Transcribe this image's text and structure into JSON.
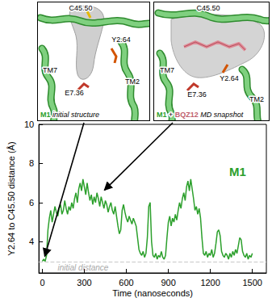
{
  "chart_data": {
    "type": "line",
    "x_label": "Time (nanoseconds)",
    "y_label": "Y2.64 to C45.50 distance (Å)",
    "x": [
      0,
      10,
      20,
      30,
      40,
      50,
      60,
      70,
      80,
      90,
      100,
      110,
      120,
      130,
      140,
      150,
      160,
      170,
      180,
      190,
      200,
      210,
      220,
      230,
      240,
      250,
      260,
      270,
      280,
      290,
      300,
      310,
      320,
      330,
      340,
      350,
      360,
      370,
      380,
      390,
      400,
      410,
      420,
      430,
      440,
      450,
      460,
      470,
      480,
      490,
      500,
      510,
      520,
      530,
      540,
      550,
      560,
      570,
      580,
      590,
      600,
      610,
      620,
      630,
      640,
      650,
      660,
      670,
      680,
      690,
      700,
      710,
      720,
      730,
      740,
      750,
      760,
      770,
      780,
      790,
      800,
      810,
      820,
      830,
      840,
      850,
      860,
      870,
      880,
      890,
      900,
      910,
      920,
      930,
      940,
      950,
      960,
      970,
      980,
      990,
      1000,
      1010,
      1020,
      1030,
      1040,
      1050,
      1060,
      1070,
      1080,
      1090,
      1100,
      1110,
      1120,
      1130,
      1140,
      1150,
      1160,
      1170,
      1180,
      1190,
      1200,
      1210,
      1220,
      1230,
      1240,
      1250,
      1260,
      1270,
      1280,
      1290,
      1300,
      1310,
      1320,
      1330,
      1340,
      1350,
      1360,
      1370,
      1380,
      1390,
      1400,
      1410,
      1420,
      1430,
      1440,
      1450,
      1460,
      1470,
      1480,
      1490,
      1500
    ],
    "series": [
      {
        "name": "M1",
        "color": "#2ca02c",
        "line_style": "solid",
        "values": [
          3.0,
          3.1,
          3.0,
          3.3,
          4.6,
          5.2,
          5.6,
          5.0,
          5.4,
          5.8,
          5.5,
          5.3,
          5.7,
          5.9,
          5.4,
          5.6,
          6.1,
          5.7,
          5.4,
          5.8,
          5.6,
          6.0,
          5.7,
          6.2,
          6.5,
          6.0,
          6.7,
          7.0,
          6.6,
          7.2,
          6.8,
          6.4,
          7.0,
          6.5,
          6.1,
          6.4,
          5.9,
          6.3,
          6.0,
          6.5,
          6.2,
          5.8,
          6.3,
          6.0,
          5.7,
          6.1,
          5.9,
          5.5,
          5.8,
          6.0,
          5.6,
          5.4,
          5.8,
          5.3,
          4.8,
          4.4,
          4.6,
          5.6,
          5.9,
          5.5,
          5.2,
          5.0,
          5.3,
          5.1,
          4.9,
          5.2,
          5.0,
          4.8,
          4.2,
          3.6,
          3.4,
          3.3,
          3.5,
          3.2,
          3.4,
          4.2,
          5.8,
          6.0,
          4.0,
          3.3,
          3.2,
          3.4,
          3.1,
          3.3,
          3.2,
          3.5,
          3.2,
          3.1,
          3.3,
          4.2,
          5.0,
          5.3,
          4.8,
          5.2,
          5.0,
          5.4,
          5.1,
          5.6,
          6.0,
          5.7,
          6.2,
          6.5,
          6.1,
          6.8,
          7.1,
          6.6,
          7.2,
          6.7,
          6.2,
          5.6,
          5.8,
          5.4,
          5.7,
          5.2,
          4.2,
          3.4,
          3.3,
          3.5,
          3.2,
          3.4,
          3.3,
          3.6,
          3.2,
          3.4,
          3.9,
          4.5,
          4.6,
          4.3,
          3.5,
          3.3,
          3.2,
          3.4,
          3.3,
          3.1,
          3.4,
          3.2,
          3.5,
          3.3,
          3.6,
          3.4,
          3.8,
          4.2,
          4.1,
          3.5,
          3.3,
          3.2,
          3.4,
          3.1,
          3.3,
          3.2,
          3.4
        ]
      }
    ],
    "xlim": [
      -25,
      1600
    ],
    "ylim": [
      2.4,
      10
    ],
    "xticks": [
      0,
      300,
      600,
      900,
      1200,
      1500
    ],
    "yticks": [
      4,
      6,
      8,
      10
    ],
    "grid": false,
    "annotations": [
      {
        "text": "initial distance",
        "y": 2.95
      }
    ]
  },
  "panels": [
    {
      "labels": [
        "C45.50",
        "Y2.64",
        "TM7",
        "TM2",
        "E7.36"
      ],
      "caption": [
        "M1",
        "initial structure"
      ]
    },
    {
      "labels": [
        "C45.50",
        "Y2.64",
        "TM7",
        "E7.36",
        "TM2"
      ],
      "caption": [
        "M1",
        "+",
        "BQZ12",
        "MD snapshot"
      ]
    }
  ]
}
